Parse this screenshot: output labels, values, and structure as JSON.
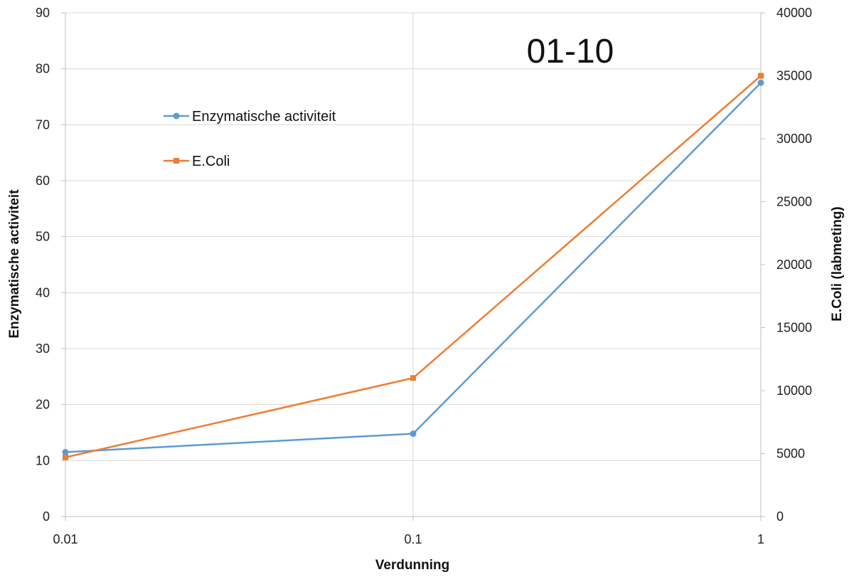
{
  "chart_data": {
    "type": "line",
    "title": "01-10",
    "xlabel": "Verdunning",
    "ylabel": "Enzymatische activiteit",
    "y2label": "E.Coli (labmeting)",
    "x_scale": "log",
    "x": [
      0.01,
      0.1,
      1
    ],
    "x_ticks": [
      "0.01",
      "0.1",
      "1"
    ],
    "ylim": [
      0,
      90
    ],
    "y_ticks": [
      "0",
      "10",
      "20",
      "30",
      "40",
      "50",
      "60",
      "70",
      "80",
      "90"
    ],
    "y2lim": [
      0,
      40000
    ],
    "y2_ticks": [
      "0",
      "5000",
      "10000",
      "15000",
      "20000",
      "25000",
      "30000",
      "35000",
      "40000"
    ],
    "grid": true,
    "legend_position": "top-left",
    "series": [
      {
        "name": "Enzymatische activiteit",
        "axis": "left",
        "values": [
          11.5,
          14.8,
          77.5
        ],
        "color": "#5B9BD5",
        "marker": "circle"
      },
      {
        "name": "E.Coli",
        "axis": "right",
        "values": [
          4700,
          11000,
          35000
        ],
        "color": "#ED7D31",
        "marker": "square"
      }
    ]
  }
}
